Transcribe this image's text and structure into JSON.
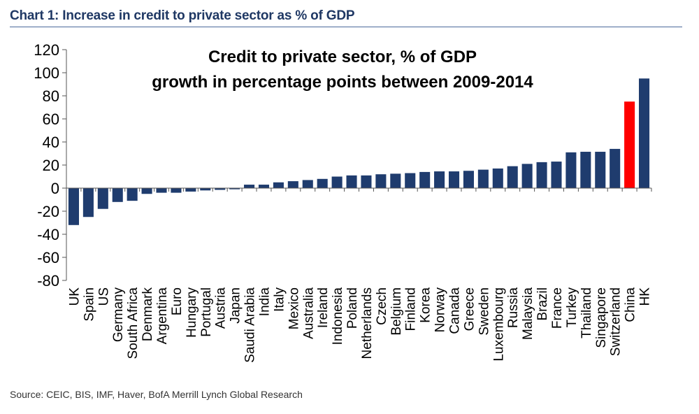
{
  "caption": "Chart 1: Increase in credit to private sector as % of GDP",
  "source": "Source: CEIC, BIS, IMF, Haver, BofA Merrill Lynch Global Research",
  "colors": {
    "bar": "#1f3c6e",
    "highlight": "#ff0000",
    "axis": "#555555",
    "caption": "#1f3864"
  },
  "chart_data": {
    "type": "bar",
    "title": "Credit to private sector, % of GDP",
    "subtitle": "growth in percentage points between 2009-2014",
    "xlabel": "",
    "ylabel": "",
    "ylim": [
      -80,
      120
    ],
    "yticks": [
      120,
      100,
      80,
      60,
      40,
      20,
      0,
      -20,
      -40,
      -60,
      -80
    ],
    "grid": false,
    "legend": "none",
    "highlight_category": "China",
    "categories": [
      "UK",
      "Spain",
      "US",
      "Germany",
      "South Africa",
      "Denmark",
      "Argentina",
      "Euro",
      "Hungary",
      "Portugal",
      "Austria",
      "Japan",
      "Saudi Arabia",
      "India",
      "Italy",
      "Mexico",
      "Australia",
      "Ireland",
      "Indonesia",
      "Poland",
      "Netherlands",
      "Czech",
      "Belgium",
      "Finland",
      "Korea",
      "Norway",
      "Canada",
      "Greece",
      "Sweden",
      "Luxembourg",
      "Russia",
      "Malaysia",
      "Brazil",
      "France",
      "Turkey",
      "Thailand",
      "Singapore",
      "Switzerland",
      "China",
      "HK"
    ],
    "values": [
      -32,
      -25,
      -18,
      -12,
      -11,
      -5,
      -4,
      -4,
      -3,
      -2,
      -1.5,
      -1,
      3,
      3,
      5,
      6,
      7,
      8,
      10,
      11,
      11,
      12,
      12.5,
      13,
      14,
      14.5,
      14.5,
      15,
      16,
      17,
      19,
      21,
      22.5,
      23,
      31,
      31.5,
      31.5,
      34,
      75,
      95
    ]
  }
}
